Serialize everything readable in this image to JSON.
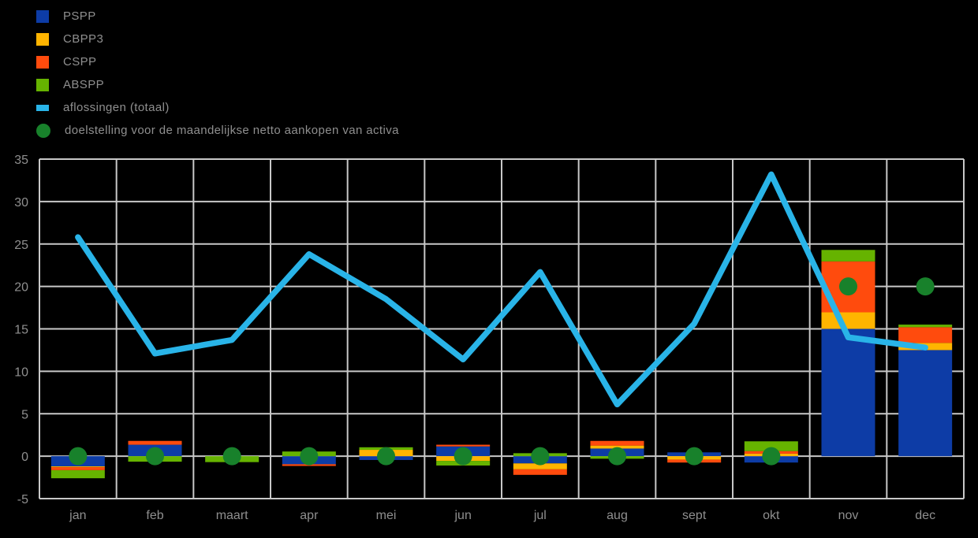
{
  "background": "#000000",
  "text_color": "#8f8f8f",
  "grid_color": "#c8c8c8",
  "legend": {
    "items": [
      {
        "key": "pspp",
        "label": "PSPP",
        "swatch": "square",
        "color": "#0d3ca6"
      },
      {
        "key": "cbpp3",
        "label": "CBPP3",
        "swatch": "square",
        "color": "#ffb400"
      },
      {
        "key": "cspp",
        "label": "CSPP",
        "swatch": "square",
        "color": "#ff4b0d"
      },
      {
        "key": "abspp",
        "label": "ABSPP",
        "swatch": "square",
        "color": "#66b300"
      },
      {
        "key": "aflossingen",
        "label": "aflossingen (totaal)",
        "swatch": "line",
        "color": "#29b4e8"
      },
      {
        "key": "doelstelling",
        "label": "doelstelling voor de maandelijkse netto aankopen van activa",
        "swatch": "circle",
        "color": "#18812b"
      }
    ]
  },
  "chart_data": {
    "type": "bar",
    "subtype": "stacked bars with line overlay and target dots",
    "categories": [
      "jan",
      "feb",
      "maart",
      "apr",
      "mei",
      "jun",
      "jul",
      "aug",
      "sept",
      "okt",
      "nov",
      "dec"
    ],
    "series": [
      {
        "name": "PSPP",
        "type": "bar",
        "color": "#0d3ca6",
        "values": [
          -1.2,
          1.35,
          0,
          -0.95,
          -0.45,
          1.15,
          -0.85,
          0.9,
          0.45,
          -0.75,
          15.0,
          12.5
        ]
      },
      {
        "name": "CBPP3",
        "type": "bar",
        "color": "#ffb400",
        "values": [
          -0.1,
          0,
          0,
          0,
          0.75,
          -0.55,
          -0.7,
          0.35,
          -0.4,
          0.3,
          1.95,
          0.85
        ]
      },
      {
        "name": "CSPP",
        "type": "bar",
        "color": "#ff4b0d",
        "values": [
          -0.35,
          0.45,
          0,
          -0.2,
          0,
          0.2,
          -0.65,
          0.55,
          -0.35,
          0.3,
          6.0,
          1.85
        ]
      },
      {
        "name": "ABSPP",
        "type": "bar",
        "color": "#66b300",
        "values": [
          -0.95,
          -0.65,
          -0.7,
          0.55,
          0.3,
          -0.55,
          0.35,
          -0.3,
          0,
          1.15,
          1.35,
          0.3
        ]
      },
      {
        "name": "aflossingen (totaal)",
        "type": "line",
        "color": "#29b4e8",
        "values": [
          25.8,
          12.1,
          13.7,
          23.8,
          18.5,
          11.4,
          21.7,
          6.1,
          15.6,
          33.2,
          14.0,
          12.8
        ]
      },
      {
        "name": "doelstelling voor de maandelijkse netto aankopen van activa",
        "type": "dot",
        "color": "#18812b",
        "values": [
          0,
          0,
          0,
          0,
          0,
          0,
          0,
          0,
          0,
          0,
          20,
          20
        ]
      }
    ],
    "title": "",
    "xlabel": "",
    "ylabel": "",
    "ylim": [
      -5,
      35
    ],
    "y_ticks": [
      35,
      30,
      25,
      20,
      15,
      10,
      5,
      0,
      -5
    ],
    "grid": true,
    "legend_position": "top-left"
  }
}
